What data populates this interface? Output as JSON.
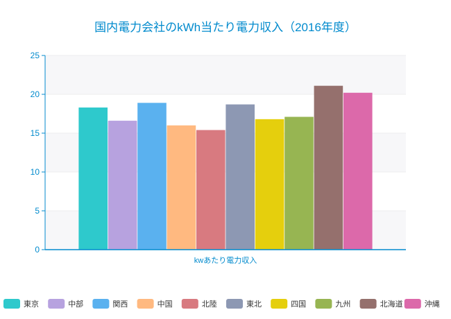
{
  "chart_data": {
    "type": "bar",
    "title": "国内電力会社のkWh当たり電力収入（2016年度）",
    "xlabel": "kwあたり電力収入",
    "ylabel": "",
    "ylim": [
      0,
      25
    ],
    "yticks": [
      0,
      5,
      10,
      15,
      20,
      25
    ],
    "grid": true,
    "legend_position": "bottom",
    "series": [
      {
        "name": "東京",
        "value": 18.3,
        "color": "#2ec9cc"
      },
      {
        "name": "中部",
        "value": 16.6,
        "color": "#b7a2df"
      },
      {
        "name": "関西",
        "value": 18.9,
        "color": "#5ab1ef"
      },
      {
        "name": "中国",
        "value": 16.0,
        "color": "#ffb980"
      },
      {
        "name": "北陸",
        "value": 15.4,
        "color": "#d87a80"
      },
      {
        "name": "東北",
        "value": 18.7,
        "color": "#8d98b3"
      },
      {
        "name": "四国",
        "value": 16.8,
        "color": "#e5cf0d"
      },
      {
        "name": "九州",
        "value": 17.1,
        "color": "#97b552"
      },
      {
        "name": "北海道",
        "value": 21.1,
        "color": "#95706d"
      },
      {
        "name": "沖縄",
        "value": 20.2,
        "color": "#dc69aa"
      }
    ]
  },
  "colors": {
    "title": "#008acd",
    "axis": "#008acd",
    "grid": "#eeeeee",
    "band": "#f7f7f9"
  }
}
